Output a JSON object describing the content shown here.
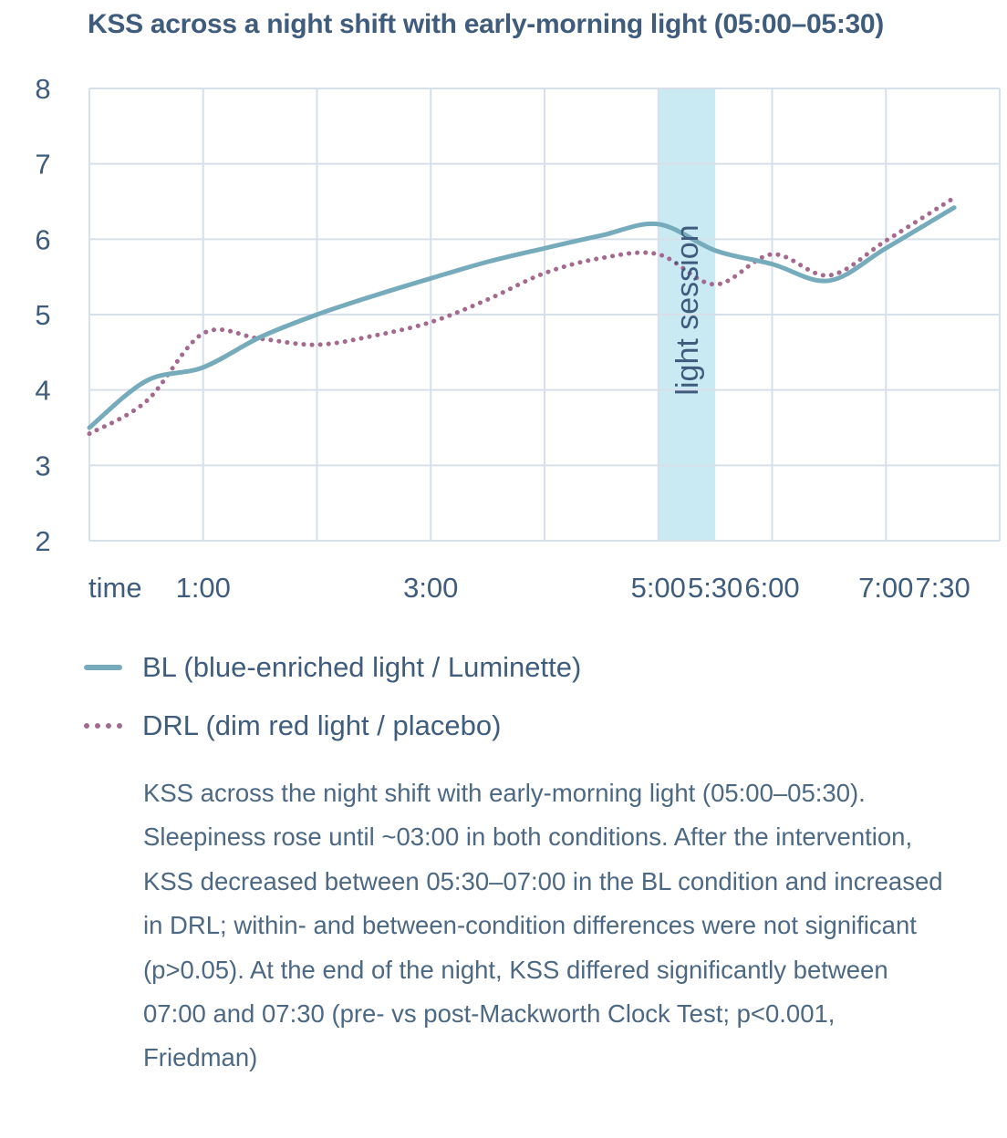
{
  "title": "KSS across a night shift with early-morning light (05:00–05:30)",
  "colors": {
    "bl": "#76abbb",
    "drl": "#a36a8e",
    "grid": "#d7e0ea",
    "band": "#bfe6f0",
    "text": "#3f5c7c"
  },
  "chart_data": {
    "type": "line",
    "title": "KSS across a night shift with early-morning light (05:00–05:30)",
    "xlabel": "time",
    "ylabel": "",
    "x_axis_label": "time",
    "xlim": [
      0,
      8
    ],
    "ylim": [
      2,
      8
    ],
    "x_ticks": [
      {
        "x": 1,
        "label": "1:00"
      },
      {
        "x": 3,
        "label": "3:00"
      },
      {
        "x": 5,
        "label": "5:00"
      },
      {
        "x": 5.5,
        "label": "5:30"
      },
      {
        "x": 6,
        "label": "6:00"
      },
      {
        "x": 7,
        "label": "7:00"
      },
      {
        "x": 7.5,
        "label": "7:30"
      }
    ],
    "x_gridlines": [
      1,
      2,
      3,
      4,
      5,
      6,
      7,
      8
    ],
    "y_ticks": [
      2,
      3,
      4,
      5,
      6,
      7,
      8
    ],
    "grid": true,
    "shaded_region": {
      "x_start": 5.0,
      "x_end": 5.5,
      "label": "light session"
    },
    "series": [
      {
        "name": "BL (blue-enriched light / Luminette)",
        "style": "solid",
        "points": [
          [
            0,
            3.5
          ],
          [
            0.5,
            4.12
          ],
          [
            1,
            4.3
          ],
          [
            1.5,
            4.7
          ],
          [
            2,
            5.0
          ],
          [
            2.5,
            5.25
          ],
          [
            3,
            5.48
          ],
          [
            3.5,
            5.7
          ],
          [
            4,
            5.88
          ],
          [
            4.5,
            6.05
          ],
          [
            5,
            6.2
          ],
          [
            5.5,
            5.85
          ],
          [
            6,
            5.67
          ],
          [
            6.5,
            5.45
          ],
          [
            7,
            5.88
          ],
          [
            7.6,
            6.42
          ]
        ]
      },
      {
        "name": "DRL (dim red light / placebo)",
        "style": "dotted",
        "points": [
          [
            0,
            3.42
          ],
          [
            0.5,
            3.85
          ],
          [
            1,
            4.75
          ],
          [
            1.5,
            4.68
          ],
          [
            2,
            4.6
          ],
          [
            2.5,
            4.72
          ],
          [
            3,
            4.9
          ],
          [
            3.5,
            5.2
          ],
          [
            4,
            5.55
          ],
          [
            4.5,
            5.75
          ],
          [
            5,
            5.8
          ],
          [
            5.5,
            5.4
          ],
          [
            6,
            5.8
          ],
          [
            6.5,
            5.52
          ],
          [
            7,
            5.98
          ],
          [
            7.6,
            6.55
          ]
        ]
      }
    ]
  },
  "legend": {
    "items": [
      {
        "label": "BL (blue-enriched light / Luminette)",
        "style": "solid"
      },
      {
        "label": "DRL (dim red light / placebo)",
        "style": "dotted"
      }
    ]
  },
  "caption": "KSS across the night shift with early-morning light (05:00–05:30). Sleepiness rose until ~03:00 in both conditions. After the intervention, KSS decreased between 05:30–07:00 in the BL condition and increased in DRL; within- and between-condition differences were not significant (p>0.05). At the end of the night, KSS differed significantly between 07:00 and 07:30 (pre- vs post-Mackworth Clock Test; p<0.001, Friedman)"
}
